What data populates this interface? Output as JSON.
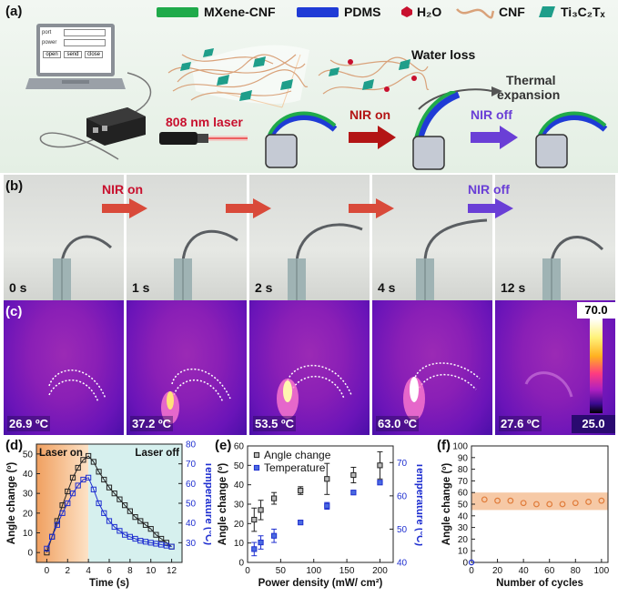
{
  "panel_a": {
    "label": "(a)",
    "legend": [
      {
        "name": "MXene-CNF",
        "color": "#1faa4a"
      },
      {
        "name": "PDMS",
        "color": "#1f3bd6"
      },
      {
        "name": "H₂O",
        "color": "#c8102e"
      },
      {
        "name": "CNF",
        "color": "#d9a27a"
      },
      {
        "name": "Ti₃C₂Tₓ",
        "color": "#1f9e8a"
      }
    ],
    "laptop_fields": [
      "port",
      "power"
    ],
    "laptop_buttons": [
      "open",
      "send",
      "close"
    ],
    "laser_label": "808 nm laser",
    "nir_on": "NIR on",
    "nir_off": "NIR off",
    "water_loss": "Water loss",
    "thermal_expansion_1": "Thermal",
    "thermal_expansion_2": "expansion"
  },
  "panel_b": {
    "label": "(b)",
    "nir_on": "NIR on",
    "nir_off": "NIR off",
    "frames": [
      "0 s",
      "1 s",
      "2 s",
      "4 s",
      "12 s"
    ]
  },
  "panel_c": {
    "label": "(c)",
    "temps": [
      "26.9 ºC",
      "37.2 ºC",
      "53.5 ºC",
      "63.0 ºC",
      "27.6 ºC"
    ],
    "scale_max": "70.0",
    "scale_min": "25.0"
  },
  "chart_data": [
    {
      "panel": "(d)",
      "type": "line",
      "xlabel": "Time (s)",
      "ylabel": "Angle change (º)",
      "y2label": "Temperature (ºC)",
      "xlim": [
        -1,
        13
      ],
      "ylim": [
        -5,
        55
      ],
      "y2lim": [
        20,
        80
      ],
      "xticks": [
        0,
        2,
        4,
        6,
        8,
        10,
        12
      ],
      "yticks": [
        0,
        10,
        20,
        30,
        40,
        50
      ],
      "y2ticks": [
        30,
        40,
        50,
        60,
        70,
        80
      ],
      "annotations": [
        "Laser on",
        "Laser off"
      ],
      "series": [
        {
          "axis": "left",
          "color": "#222222",
          "marker": "square",
          "x": [
            0,
            0.5,
            1,
            1.5,
            2,
            2.5,
            3,
            3.5,
            4,
            4.5,
            5,
            5.5,
            6,
            6.5,
            7,
            7.5,
            8,
            8.5,
            9,
            9.5,
            10,
            10.5,
            11,
            11.5,
            12
          ],
          "y": [
            0,
            8,
            16,
            24,
            31,
            38,
            43,
            47,
            49,
            46,
            41,
            37,
            33,
            30,
            27,
            24,
            21,
            18,
            16,
            14,
            12,
            9,
            7,
            5,
            3
          ]
        },
        {
          "axis": "right",
          "color": "#1f2fd0",
          "marker": "square",
          "x": [
            0,
            0.5,
            1,
            1.5,
            2,
            2.5,
            3,
            3.5,
            4,
            4.5,
            5,
            5.5,
            6,
            6.5,
            7,
            7.5,
            8,
            8.5,
            9,
            9.5,
            10,
            10.5,
            11,
            11.5,
            12
          ],
          "y": [
            27,
            33,
            39,
            45,
            50,
            55,
            59,
            62,
            63,
            57,
            50,
            45,
            41,
            38,
            36,
            34,
            33,
            32,
            31,
            30.5,
            30,
            29.5,
            29,
            28.5,
            28
          ]
        }
      ]
    },
    {
      "panel": "(e)",
      "type": "scatter",
      "xlabel": "Power density (mW/ cm²)",
      "ylabel": "Angle change (º)",
      "y2label": "Temperature (ºC)",
      "xlim": [
        0,
        220
      ],
      "ylim": [
        0,
        60
      ],
      "y2lim": [
        40,
        75
      ],
      "xticks": [
        0,
        50,
        100,
        150,
        200
      ],
      "yticks": [
        0,
        10,
        20,
        30,
        40,
        50,
        60
      ],
      "y2ticks": [
        40,
        50,
        60,
        70
      ],
      "series": [
        {
          "name": "Angle change",
          "axis": "left",
          "color": "#222222",
          "x": [
            10,
            20,
            40,
            80,
            120,
            160,
            200
          ],
          "y": [
            22,
            27,
            33,
            37,
            43,
            45,
            50
          ],
          "err": [
            6,
            5,
            3,
            2,
            8,
            4,
            7
          ]
        },
        {
          "name": "Temperature",
          "axis": "right",
          "color": "#1f2fd0",
          "x": [
            10,
            20,
            40,
            80,
            120,
            160,
            200
          ],
          "y": [
            44,
            46,
            48,
            52,
            57,
            61,
            64
          ],
          "err": [
            2,
            2,
            2,
            0.5,
            1,
            0.5,
            0.5
          ]
        }
      ]
    },
    {
      "panel": "(f)",
      "type": "scatter",
      "xlabel": "Number of cycles",
      "ylabel": "Angle change (º)",
      "xlim": [
        0,
        105
      ],
      "ylim": [
        0,
        100
      ],
      "xticks": [
        0,
        20,
        40,
        60,
        80,
        100
      ],
      "yticks": [
        0,
        10,
        20,
        30,
        40,
        50,
        60,
        70,
        80,
        90,
        100
      ],
      "band": [
        45,
        60
      ],
      "series": [
        {
          "axis": "left",
          "color": "#e07b39",
          "x": [
            10,
            20,
            30,
            40,
            50,
            60,
            70,
            80,
            90,
            100
          ],
          "y": [
            54,
            53,
            53,
            51,
            50,
            50,
            50,
            51,
            52,
            53
          ]
        }
      ]
    }
  ]
}
